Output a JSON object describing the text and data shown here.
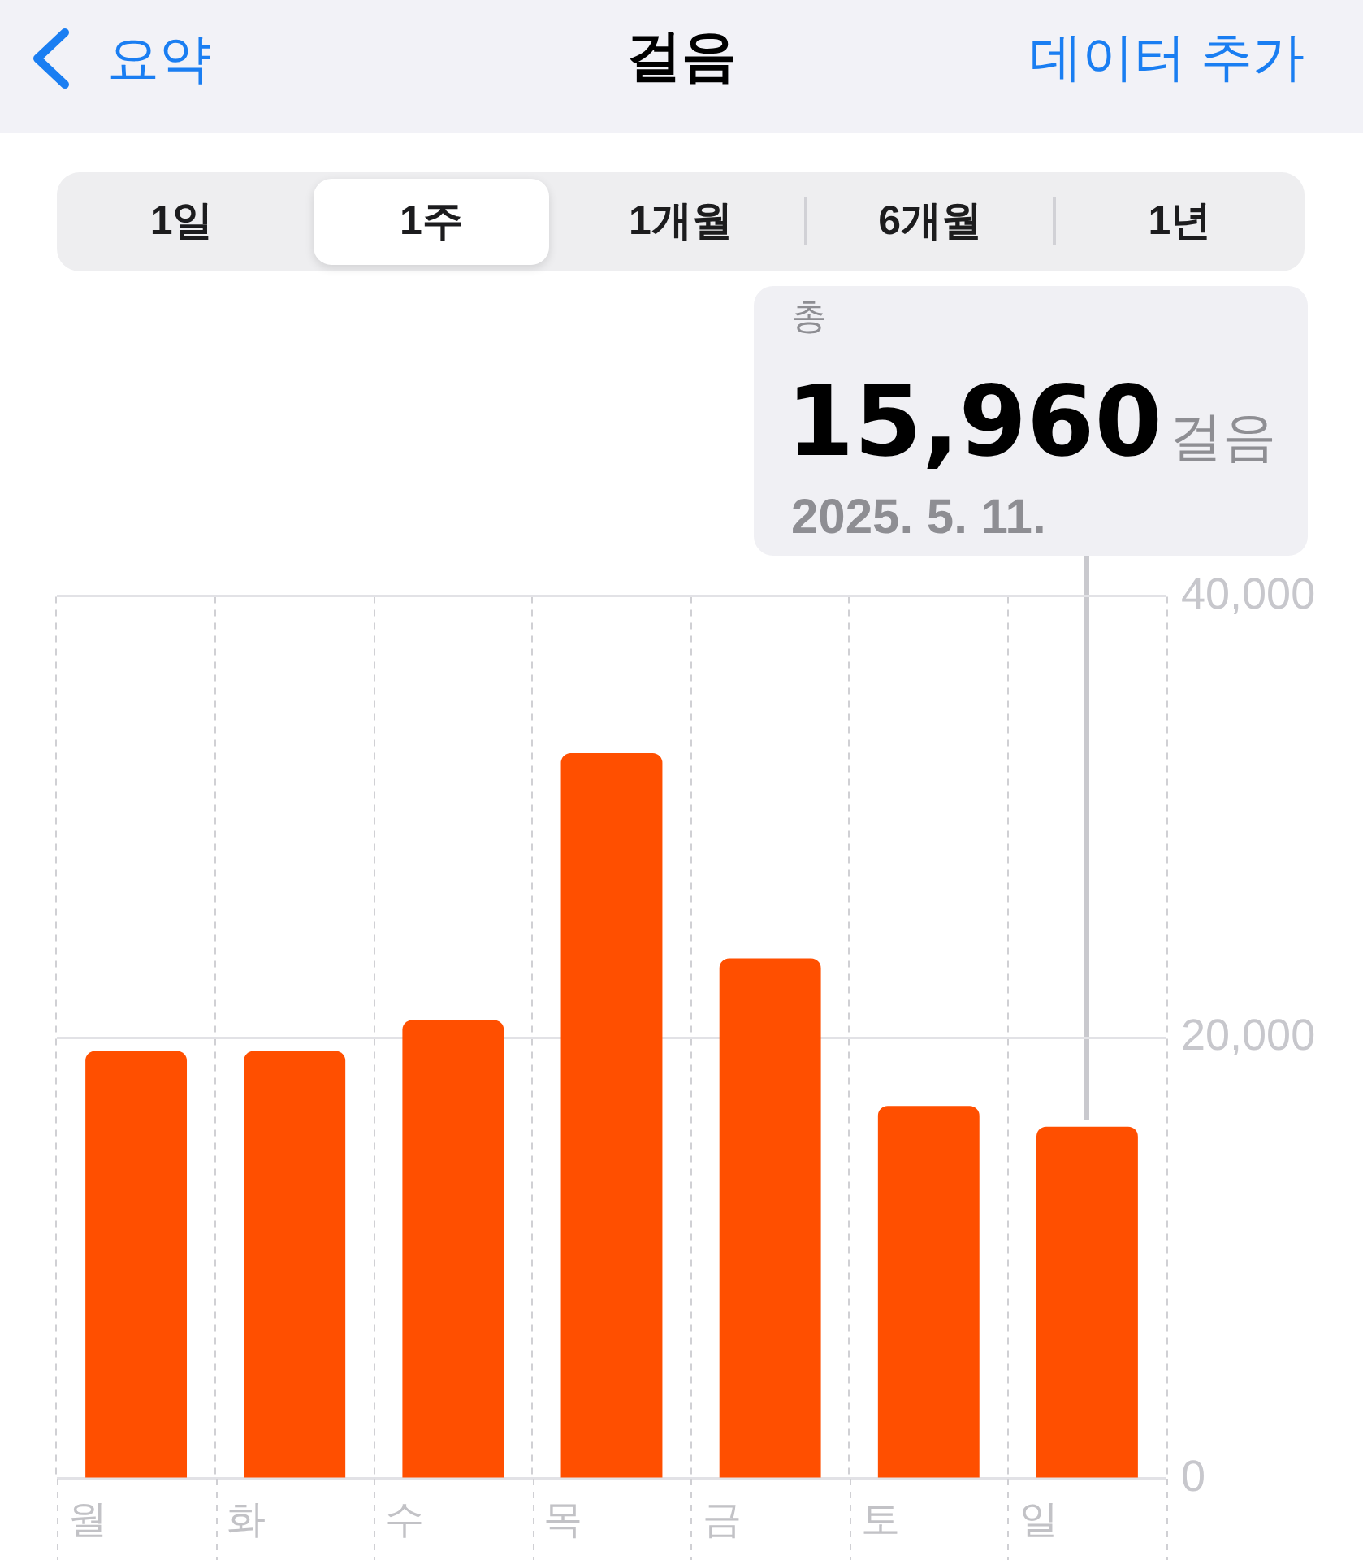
{
  "chart_data": {
    "type": "bar",
    "title": "걸음",
    "categories": [
      "월",
      "화",
      "수",
      "목",
      "금",
      "토",
      "일"
    ],
    "values": [
      19400,
      19400,
      20800,
      32900,
      23600,
      16900,
      15960
    ],
    "color": "#ff4f00",
    "ylim": [
      0,
      40000
    ],
    "yticks": [
      0,
      {
        "value": 20000,
        "label": "20,000"
      },
      {
        "value": 40000,
        "label": "40,000"
      }
    ],
    "grid": true,
    "annotations": [
      "요약",
      "데이터 추가",
      "1일",
      "1주",
      "1개월",
      "6개월",
      "1년",
      "총",
      "15,960",
      "걸음",
      "2025. 5. 11."
    ]
  }
}
